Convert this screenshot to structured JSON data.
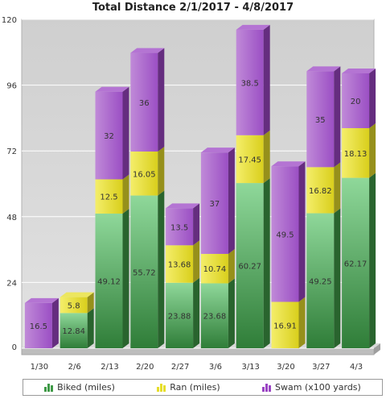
{
  "chart_data": {
    "type": "bar",
    "stacked": true,
    "title": "Total Distance 2/1/2017 - 4/8/2017",
    "categories": [
      "1/30",
      "2/6",
      "2/13",
      "2/20",
      "2/27",
      "3/6",
      "3/13",
      "3/20",
      "3/27",
      "4/3"
    ],
    "series": [
      {
        "name": "Biked (miles)",
        "color": "#3f9a47",
        "values": [
          0,
          12.84,
          49.12,
          55.72,
          23.88,
          23.68,
          60.27,
          0,
          49.25,
          62.17
        ]
      },
      {
        "name": "Ran (miles)",
        "color": "#e6de2a",
        "values": [
          0,
          5.8,
          12.5,
          16.05,
          13.68,
          10.74,
          17.45,
          16.91,
          16.82,
          18.13
        ]
      },
      {
        "name": "Swam (x100 yards)",
        "color": "#9b45c4",
        "values": [
          16.5,
          0,
          32,
          36,
          13.5,
          37,
          38.5,
          49.5,
          35,
          20
        ]
      }
    ],
    "ylim": [
      0,
      120
    ],
    "yticks": [
      0,
      24,
      48,
      72,
      96,
      120
    ],
    "grid": true,
    "legend_position": "bottom"
  }
}
